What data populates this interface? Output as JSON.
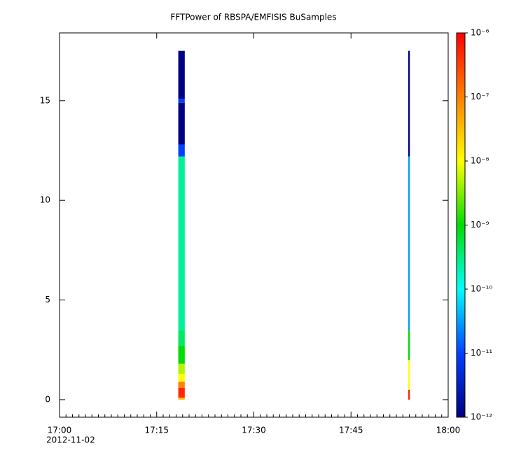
{
  "chart_data": {
    "type": "spectrogram",
    "title": "FFTPower of RBSPA/EMFISIS  BuSamples",
    "x_date_label": "2012-11-02",
    "xlim": [
      "2012-11-02T17:00:00",
      "2012-11-02T18:00:00"
    ],
    "xticks": [
      {
        "value": "2012-11-02T17:00:00",
        "label": "17:00"
      },
      {
        "value": "2012-11-02T17:15:00",
        "label": "17:15"
      },
      {
        "value": "2012-11-02T17:30:00",
        "label": "17:30"
      },
      {
        "value": "2012-11-02T17:45:00",
        "label": "17:45"
      },
      {
        "value": "2012-11-02T18:00:00",
        "label": "18:00"
      }
    ],
    "ylim": [
      -0.88,
      18.4
    ],
    "yticks": [
      0,
      5,
      10,
      15
    ],
    "zlim": [
      1e-12,
      1e-06
    ],
    "zlog": true,
    "zticks": [
      {
        "value": 1e-12,
        "label": "10⁻¹²"
      },
      {
        "value": 1e-11,
        "label": "10⁻¹¹"
      },
      {
        "value": 1e-10,
        "label": "10⁻¹⁰"
      },
      {
        "value": 1e-09,
        "label": "10⁻⁹"
      },
      {
        "value": 1e-08,
        "label": "10⁻⁸"
      },
      {
        "value": 1e-07,
        "label": "10⁻⁷"
      },
      {
        "value": 1e-06,
        "label": "10⁻⁶"
      }
    ],
    "colormap": [
      "#000082",
      "#0040ff",
      "#00ffff",
      "#00dd00",
      "#ffff00",
      "#ff8000",
      "#ff0000"
    ],
    "columns": [
      {
        "start": "2012-11-02T17:18:20",
        "end": "2012-11-02T17:19:20",
        "freq_edges": [
          0,
          0.1,
          0.6,
          0.9,
          1.3,
          1.8,
          2.7,
          3.5,
          12.2,
          12.8,
          14.9,
          15.1,
          17.5
        ],
        "values": [
          3e-08,
          5e-07,
          1e-07,
          1e-08,
          5e-09,
          1e-09,
          4e-10,
          2.5e-10,
          1e-11,
          1e-12,
          1e-11,
          1e-12
        ]
      },
      {
        "start": "2012-11-02T17:53:50",
        "end": "2012-11-02T17:54:05",
        "freq_edges": [
          0,
          0.5,
          2,
          3.5,
          12.2,
          17.5
        ],
        "values": [
          5e-07,
          1e-08,
          1e-09,
          3e-11,
          1e-12
        ]
      }
    ]
  }
}
